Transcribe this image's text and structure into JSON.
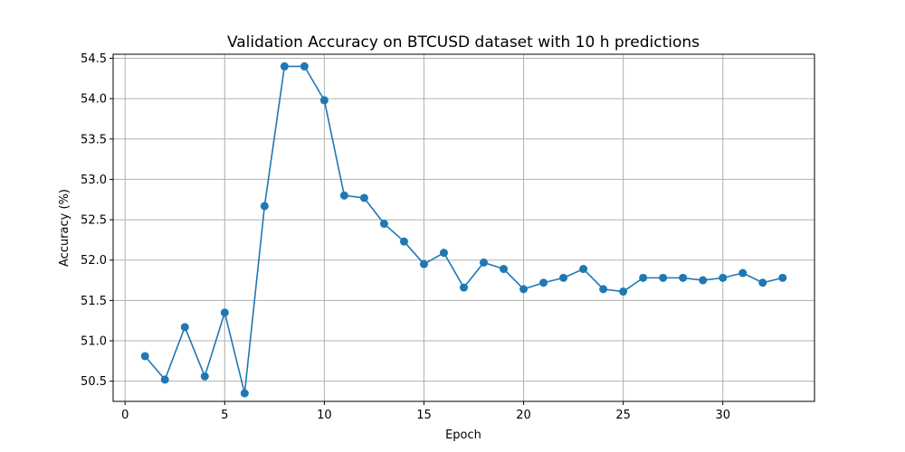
{
  "chart_data": {
    "type": "line",
    "title": "Validation Accuracy on BTCUSD dataset with 10 h predictions",
    "xlabel": "Epoch",
    "ylabel": "Accuracy (%)",
    "xlim": [
      -0.6,
      34.6
    ],
    "ylim": [
      50.25,
      54.55
    ],
    "xticks": [
      0,
      5,
      10,
      15,
      20,
      25,
      30
    ],
    "yticks": [
      50.5,
      51.0,
      51.5,
      52.0,
      52.5,
      53.0,
      53.5,
      54.0,
      54.5
    ],
    "grid": true,
    "color": "#1f77b4",
    "marker": "circle",
    "x": [
      1,
      2,
      3,
      4,
      5,
      6,
      7,
      8,
      9,
      10,
      11,
      12,
      13,
      14,
      15,
      16,
      17,
      18,
      19,
      20,
      21,
      22,
      23,
      24,
      25,
      26,
      27,
      28,
      29,
      30,
      31,
      32,
      33
    ],
    "y": [
      50.81,
      50.52,
      51.17,
      50.56,
      51.35,
      50.35,
      52.67,
      54.4,
      54.4,
      53.98,
      52.8,
      52.77,
      52.45,
      52.23,
      51.95,
      52.09,
      51.66,
      51.97,
      51.89,
      51.64,
      51.72,
      51.78,
      51.89,
      51.64,
      51.61,
      51.78,
      51.78,
      51.78,
      51.75,
      51.78,
      51.84,
      51.72,
      51.78
    ]
  }
}
